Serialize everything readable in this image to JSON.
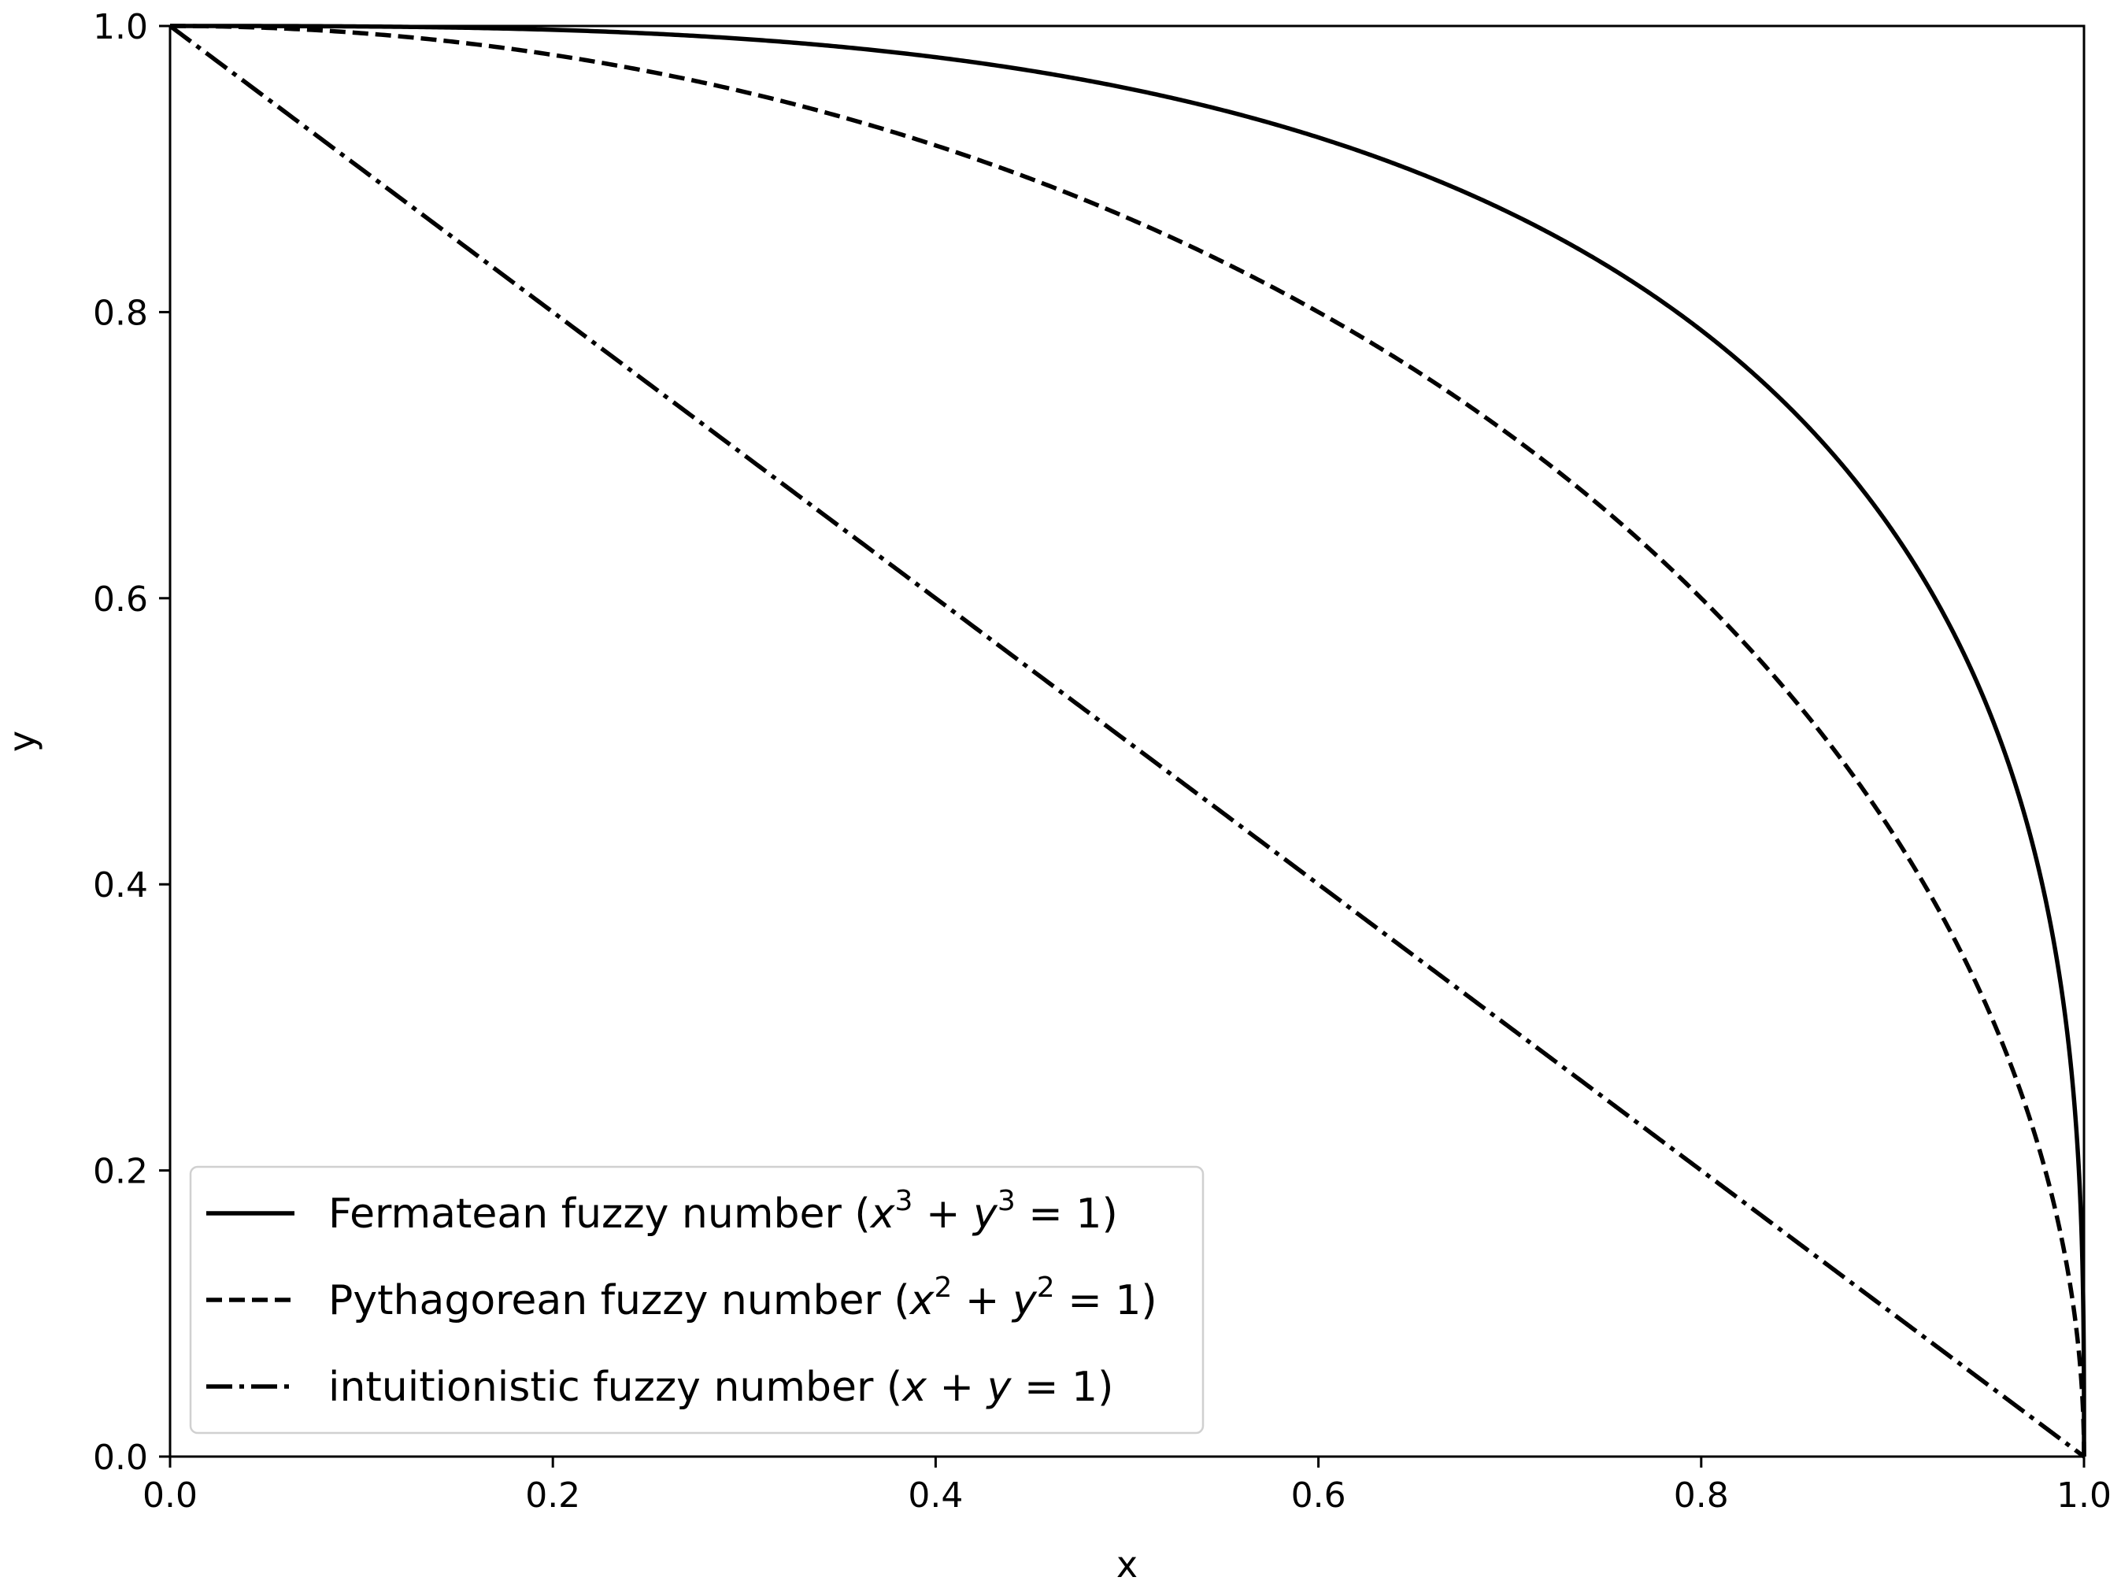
{
  "chart_data": {
    "type": "line",
    "xlabel": "x",
    "ylabel": "y",
    "xlim": [
      0.0,
      1.0
    ],
    "ylim": [
      0.0,
      1.0
    ],
    "xticks": [
      "0.0",
      "0.2",
      "0.4",
      "0.6",
      "0.8",
      "1.0"
    ],
    "yticks": [
      "0.0",
      "0.2",
      "0.4",
      "0.6",
      "0.8",
      "1.0"
    ],
    "grid": false,
    "legend_position": "lower-left",
    "series": [
      {
        "name": "Fermatean fuzzy number",
        "equation": {
          "base": "x",
          "exp1": "3",
          "op": "+",
          "base2": "y",
          "exp2": "3",
          "rhs": "= 1"
        },
        "line_style": "solid",
        "color": "#000000",
        "x": [
          0.0,
          0.1,
          0.2,
          0.3,
          0.4,
          0.5,
          0.6,
          0.7,
          0.8,
          0.9,
          0.95,
          0.98,
          1.0
        ],
        "y": [
          1.0,
          0.9997,
          0.9973,
          0.991,
          0.9784,
          0.9565,
          0.9221,
          0.8708,
          0.7937,
          0.6669,
          0.5277,
          0.3882,
          0.0
        ]
      },
      {
        "name": "Pythagorean fuzzy number",
        "equation": {
          "base": "x",
          "exp1": "2",
          "op": "+",
          "base2": "y",
          "exp2": "2",
          "rhs": "= 1"
        },
        "line_style": "dashed",
        "color": "#000000",
        "x": [
          0.0,
          0.1,
          0.2,
          0.3,
          0.4,
          0.5,
          0.6,
          0.7,
          0.8,
          0.9,
          0.95,
          0.98,
          1.0
        ],
        "y": [
          1.0,
          0.995,
          0.9798,
          0.9539,
          0.9165,
          0.866,
          0.8,
          0.7141,
          0.6,
          0.4359,
          0.3122,
          0.199,
          0.0
        ]
      },
      {
        "name": "intuitionistic fuzzy number",
        "equation": {
          "lhs": "x + y",
          "rhs": "= 1"
        },
        "line_style": "dash-dot",
        "color": "#000000",
        "x": [
          0.0,
          0.1,
          0.2,
          0.3,
          0.4,
          0.5,
          0.6,
          0.7,
          0.8,
          0.9,
          1.0
        ],
        "y": [
          1.0,
          0.9,
          0.8,
          0.7,
          0.6,
          0.5,
          0.4,
          0.3,
          0.2,
          0.1,
          0.0
        ]
      }
    ]
  }
}
